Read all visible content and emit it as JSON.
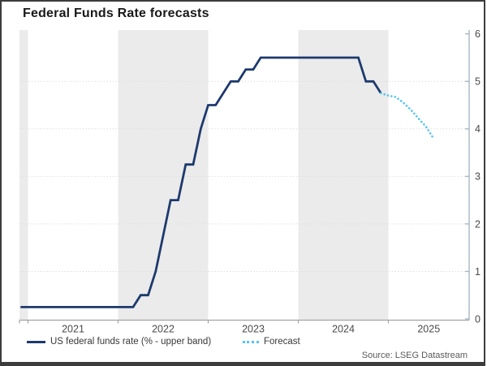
{
  "header": {
    "title": "Federal Funds Rate forecasts"
  },
  "legend": {
    "actual": "US federal funds rate (% - upper band)",
    "forecast": "Forecast"
  },
  "source": "Source: LSEG Datastream",
  "colors": {
    "navy": "#1e3a6d",
    "forecast_blue": "#55c3f0",
    "band": "#ebebeb",
    "gridline": "#dedede",
    "axis_bottom": "#a3a3a3",
    "axis_right": "#a7b7c7",
    "tick_text": "#4a4a4a",
    "title_text": "#191919",
    "legend_text": "#383838",
    "source_text": "#595959",
    "frame_border": "#3c3c3c"
  },
  "chart_data": {
    "type": "line",
    "title": "Federal Funds Rate forecasts",
    "xlabel": "",
    "ylabel": "",
    "x_axis": {
      "tick_labels": [
        "2021",
        "2022",
        "2023",
        "2024",
        "2025"
      ],
      "range_start": "2020-11",
      "range_end": "2025-11"
    },
    "y_axis": {
      "ticks": [
        0,
        1,
        2,
        3,
        4,
        5,
        6
      ],
      "range": [
        0,
        6
      ],
      "side": "right"
    },
    "grid": "horizontal-dotted",
    "gridline_values": [
      1,
      2,
      3,
      4,
      5
    ],
    "shaded_year_bands": [
      "2020",
      "2022",
      "2024"
    ],
    "legend_position": "bottom",
    "series": [
      {
        "name": "US federal funds rate (% - upper band)",
        "style": "solid",
        "color": "#1e3a6d",
        "points": [
          [
            "2020-11",
            0.25
          ],
          [
            "2022-02",
            0.25
          ],
          [
            "2022-03",
            0.5
          ],
          [
            "2022-04",
            0.5
          ],
          [
            "2022-05",
            1.0
          ],
          [
            "2022-06",
            1.75
          ],
          [
            "2022-07",
            2.5
          ],
          [
            "2022-08",
            2.5
          ],
          [
            "2022-09",
            3.25
          ],
          [
            "2022-10",
            3.25
          ],
          [
            "2022-11",
            4.0
          ],
          [
            "2022-12",
            4.5
          ],
          [
            "2023-01",
            4.5
          ],
          [
            "2023-02",
            4.75
          ],
          [
            "2023-03",
            5.0
          ],
          [
            "2023-04",
            5.0
          ],
          [
            "2023-05",
            5.25
          ],
          [
            "2023-06",
            5.25
          ],
          [
            "2023-07",
            5.5
          ],
          [
            "2024-08",
            5.5
          ],
          [
            "2024-09",
            5.0
          ],
          [
            "2024-10",
            5.0
          ],
          [
            "2024-11",
            4.75
          ]
        ]
      },
      {
        "name": "Forecast",
        "style": "dotted",
        "color": "#55c3f0",
        "points": [
          [
            "2024-11",
            4.75
          ],
          [
            "2024-12",
            4.7
          ],
          [
            "2025-01",
            4.67
          ],
          [
            "2025-02",
            4.55
          ],
          [
            "2025-03",
            4.4
          ],
          [
            "2025-04",
            4.22
          ],
          [
            "2025-05",
            4.05
          ],
          [
            "2025-06",
            3.8
          ]
        ]
      }
    ]
  }
}
